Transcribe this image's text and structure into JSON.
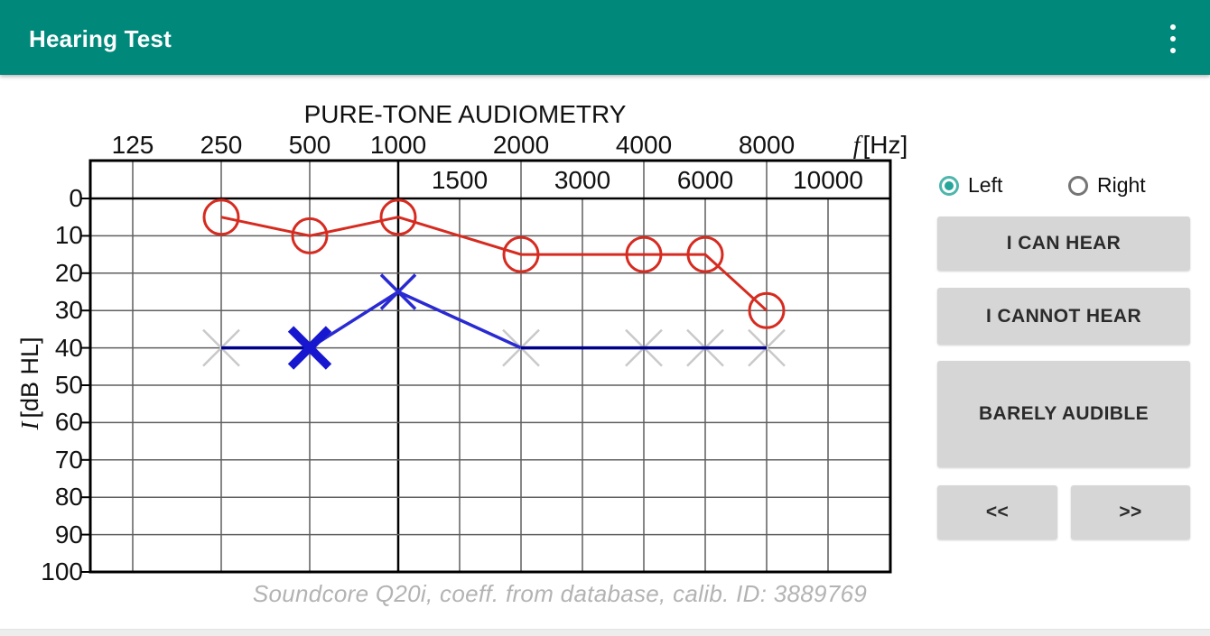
{
  "app_bar": {
    "title": "Hearing Test",
    "color": "#00897b",
    "overflow_icon": "kebab-menu-icon"
  },
  "chart_data": {
    "type": "line",
    "title": "PURE-TONE AUDIOMETRY",
    "x_symbol": "f",
    "x_unit": "[Hz]",
    "y_symbol": "I",
    "y_unit": "[dB HL]",
    "x_main_ticks": [
      125,
      250,
      500,
      1000,
      2000,
      4000,
      8000
    ],
    "x_band_ticks": [
      1500,
      3000,
      6000,
      10000
    ],
    "x_columns": [
      125,
      250,
      500,
      1000,
      1500,
      2000,
      3000,
      4000,
      6000,
      8000,
      10000
    ],
    "y_ticks": [
      0,
      10,
      20,
      30,
      40,
      50,
      60,
      70,
      80,
      90,
      100
    ],
    "ylim": [
      0,
      100
    ],
    "grid": true,
    "series": [
      {
        "name": "right-ear",
        "marker": "circle",
        "color": "#d62b20",
        "points": [
          {
            "f": 250,
            "db": 5
          },
          {
            "f": 500,
            "db": 10
          },
          {
            "f": 1000,
            "db": 5
          },
          {
            "f": 2000,
            "db": 15
          },
          {
            "f": 4000,
            "db": 15
          },
          {
            "f": 6000,
            "db": 15
          },
          {
            "f": 8000,
            "db": 30
          }
        ]
      },
      {
        "name": "left-ear",
        "marker": "x",
        "color": "#2a2ad2",
        "color_bold": "#1717cf",
        "color_line": "#00008b",
        "color_pending": "#c9c9c9",
        "points": [
          {
            "f": 250,
            "db": 40,
            "state": "pending"
          },
          {
            "f": 500,
            "db": 40,
            "state": "current"
          },
          {
            "f": 1000,
            "db": 25,
            "state": "measured"
          },
          {
            "f": 2000,
            "db": 40,
            "state": "pending"
          },
          {
            "f": 4000,
            "db": 40,
            "state": "pending"
          },
          {
            "f": 6000,
            "db": 40,
            "state": "pending"
          },
          {
            "f": 8000,
            "db": 40,
            "state": "pending"
          }
        ]
      }
    ]
  },
  "controls": {
    "ear_selector": {
      "accent": "#26a69a",
      "options": [
        {
          "label": "Left",
          "selected": true
        },
        {
          "label": "Right",
          "selected": false
        }
      ]
    },
    "buttons": {
      "can_hear": "I CAN HEAR",
      "cannot_hear": "I CANNOT HEAR",
      "barely_audible": "BARELY AUDIBLE",
      "prev": "<<",
      "next": ">>"
    }
  },
  "caption": "Soundcore Q20i, coeff. from database, calib. ID: 3889769"
}
